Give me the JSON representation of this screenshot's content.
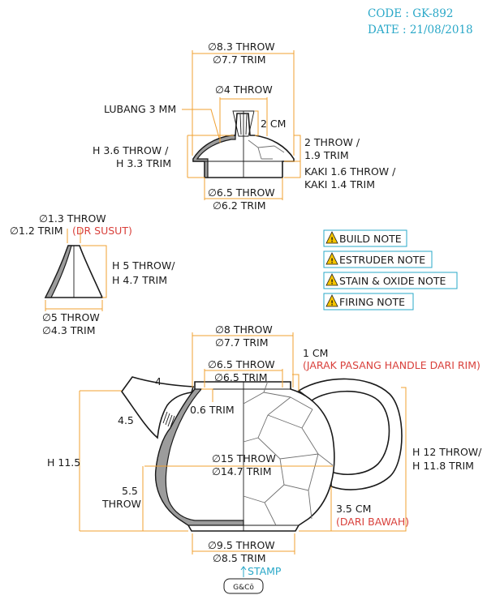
{
  "header": {
    "code": "CODE : GK-892",
    "date": "DATE : 21/08/2018"
  },
  "lid": {
    "outer_dia": "∅8.3 THROW",
    "outer_dia_trim": "∅7.7 TRIM",
    "knob_dia": "∅4 THROW",
    "hole": "LUBANG 3 MM",
    "knob_height": "2 CM",
    "height_throw": "H 3.6 THROW /",
    "height_trim": "H 3.3 TRIM",
    "rim_throw": "2 THROW /",
    "rim_trim": "1.9 TRIM",
    "foot_throw": "KAKI 1.6 THROW /",
    "foot_trim": "KAKI 1.4 TRIM",
    "base_dia": "∅6.5 THROW",
    "base_dia_trim": "∅6.2 TRIM"
  },
  "spout": {
    "top_dia": "∅1.3 THROW",
    "top_dia_trim": "∅1.2 TRIM",
    "top_note": "(DR SUSUT)",
    "height_throw": "H 5 THROW/",
    "height_trim": "H 4.7 TRIM",
    "base_dia": "∅5 THROW",
    "base_dia_trim": "∅4.3 TRIM"
  },
  "notes": [
    {
      "label": "BUILD NOTE",
      "icon": "warning-icon"
    },
    {
      "label": "ESTRUDER NOTE",
      "icon": "warning-icon"
    },
    {
      "label": "STAIN & OXIDE NOTE",
      "icon": "warning-icon"
    },
    {
      "label": "FIRING NOTE",
      "icon": "warning-icon"
    }
  ],
  "pot": {
    "mouth_throw": "∅8 THROW",
    "mouth_trim": "∅7.7 TRIM",
    "gallery_throw": "∅6.5 THROW",
    "gallery_trim": "∅6.5 TRIM",
    "handle_gap": "1 CM",
    "handle_note": "(JARAK PASANG HANDLE DARI RIM)",
    "spout_four": "4",
    "spout_side": "4.5",
    "wall_trim": "0.6 TRIM",
    "total_height": "H 11.5",
    "belly_throw": "∅15 THROW",
    "belly_trim": "∅14.7 TRIM",
    "lower_height": "5.5",
    "lower_height_unit": "THROW",
    "handle_height_throw": "H 12 THROW/",
    "handle_height_trim": "H 11.8 TRIM",
    "handle_base": "3.5 CM",
    "handle_base_note": "(DARI BAWAH)",
    "foot_throw": "∅9.5 THROW",
    "foot_trim": "∅8.5 TRIM",
    "stamp_label": "STAMP",
    "stamp_mark": "G&Cō"
  },
  "colors": {
    "dimension": "#f0a030",
    "accent_red": "#d9413c",
    "accent_blue": "#2aa8c8",
    "glaze": "#9c9c9c",
    "warning": "#f5c400"
  }
}
